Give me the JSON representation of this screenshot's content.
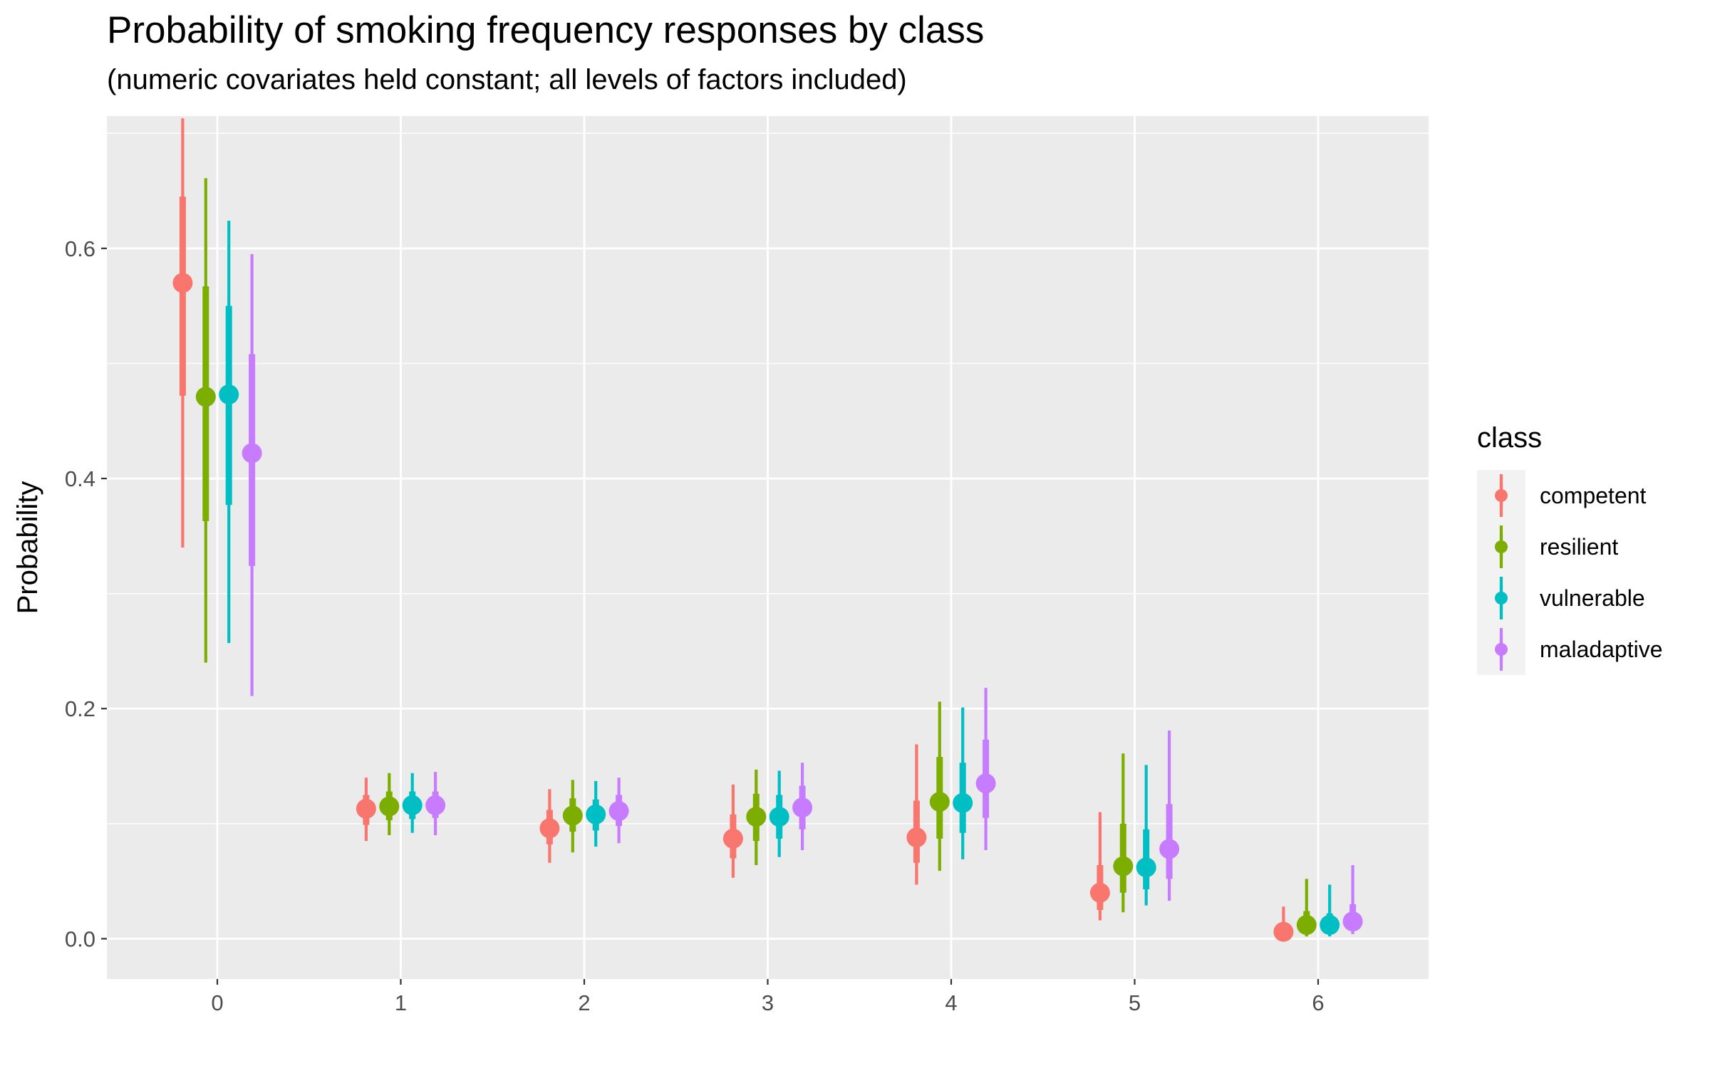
{
  "chart_data": {
    "type": "scatter",
    "title": "Probability of smoking frequency responses by class",
    "subtitle": "(numeric covariates held constant; all levels of factors included)",
    "xlabel": "",
    "ylabel": "Probability",
    "categories": [
      "0",
      "1",
      "2",
      "3",
      "4",
      "5",
      "6"
    ],
    "ylim": [
      -0.035,
      0.715
    ],
    "yticks": [
      "0.0",
      "0.2",
      "0.4",
      "0.6"
    ],
    "ytick_values": [
      0.0,
      0.2,
      0.4,
      0.6
    ],
    "grid": true,
    "legend": {
      "title": "class",
      "position": "right"
    },
    "series": [
      {
        "name": "competent",
        "color": "#F8766D",
        "values": [
          0.57,
          0.113,
          0.096,
          0.087,
          0.088,
          0.04,
          0.006
        ],
        "inner_lower": [
          0.472,
          0.099,
          0.082,
          0.07,
          0.066,
          0.025,
          0.003
        ],
        "inner_upper": [
          0.645,
          0.125,
          0.112,
          0.108,
          0.12,
          0.064,
          0.012
        ],
        "outer_lower": [
          0.34,
          0.085,
          0.066,
          0.053,
          0.047,
          0.016,
          0.001
        ],
        "outer_upper": [
          0.713,
          0.14,
          0.13,
          0.134,
          0.169,
          0.11,
          0.028
        ]
      },
      {
        "name": "resilient",
        "color": "#7CAE00",
        "values": [
          0.471,
          0.115,
          0.107,
          0.106,
          0.119,
          0.063,
          0.012
        ],
        "inner_lower": [
          0.363,
          0.103,
          0.093,
          0.085,
          0.087,
          0.04,
          0.006
        ],
        "inner_upper": [
          0.567,
          0.128,
          0.122,
          0.126,
          0.158,
          0.1,
          0.024
        ],
        "outer_lower": [
          0.24,
          0.09,
          0.075,
          0.064,
          0.059,
          0.023,
          0.002
        ],
        "outer_upper": [
          0.661,
          0.144,
          0.138,
          0.147,
          0.206,
          0.161,
          0.052
        ]
      },
      {
        "name": "vulnerable",
        "color": "#00BFC4",
        "values": [
          0.473,
          0.116,
          0.108,
          0.106,
          0.118,
          0.062,
          0.012
        ],
        "inner_lower": [
          0.377,
          0.104,
          0.094,
          0.087,
          0.092,
          0.043,
          0.006
        ],
        "inner_upper": [
          0.55,
          0.128,
          0.121,
          0.125,
          0.153,
          0.095,
          0.022
        ],
        "outer_lower": [
          0.257,
          0.092,
          0.08,
          0.071,
          0.069,
          0.029,
          0.002
        ],
        "outer_upper": [
          0.624,
          0.144,
          0.137,
          0.146,
          0.201,
          0.151,
          0.047
        ]
      },
      {
        "name": "maladaptive",
        "color": "#C77CFF",
        "values": [
          0.422,
          0.116,
          0.111,
          0.114,
          0.135,
          0.078,
          0.015
        ],
        "inner_lower": [
          0.324,
          0.105,
          0.098,
          0.095,
          0.105,
          0.052,
          0.008
        ],
        "inner_upper": [
          0.508,
          0.128,
          0.125,
          0.133,
          0.173,
          0.117,
          0.03
        ],
        "outer_lower": [
          0.211,
          0.09,
          0.083,
          0.077,
          0.077,
          0.033,
          0.004
        ],
        "outer_upper": [
          0.595,
          0.145,
          0.14,
          0.153,
          0.218,
          0.181,
          0.064
        ]
      }
    ]
  }
}
